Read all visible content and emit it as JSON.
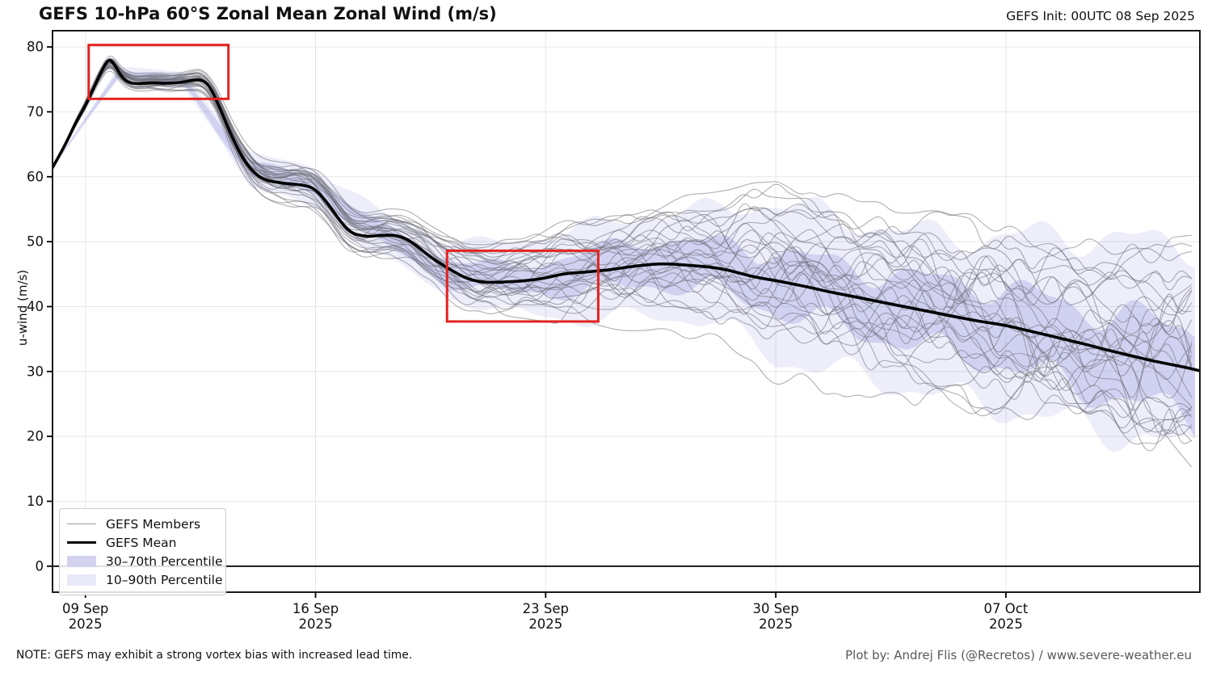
{
  "header": {
    "title": "GEFS 10-hPa 60°S Zonal Mean Zonal Wind (m/s)",
    "init_label": "GEFS Init: 00UTC 08 Sep 2025"
  },
  "footer": {
    "note": "NOTE: GEFS may exhibit a strong vortex bias with increased lead time.",
    "credit": "Plot by: Andrej Flis (@Recretos) / www.severe-weather.eu"
  },
  "legend": {
    "items": [
      {
        "label": "GEFS Members",
        "swatch": "thin-line"
      },
      {
        "label": "GEFS Mean",
        "swatch": "thick-line"
      },
      {
        "label": "30–70th Percentile",
        "swatch": "patch-dark"
      },
      {
        "label": "10–90th Percentile",
        "swatch": "patch-light"
      }
    ]
  },
  "chart_data": {
    "type": "line",
    "title": "GEFS 10-hPa 60°S Zonal Mean Zonal Wind (m/s)",
    "xlabel": "",
    "ylabel": "u-wind (m/s)",
    "x_unit_days_since_init": true,
    "xlim": [
      0,
      34.9
    ],
    "ylim": [
      -4,
      82.5
    ],
    "grid": true,
    "legend_position": "lower left",
    "y_ticks": [
      0,
      10,
      20,
      30,
      40,
      50,
      60,
      70,
      80
    ],
    "x_ticks": [
      {
        "t": 1,
        "line1": "09 Sep",
        "line2": "2025"
      },
      {
        "t": 8,
        "line1": "16 Sep",
        "line2": "2025"
      },
      {
        "t": 15,
        "line1": "23 Sep",
        "line2": "2025"
      },
      {
        "t": 22,
        "line1": "30 Sep",
        "line2": "2025"
      },
      {
        "t": 29,
        "line1": "07 Oct",
        "line2": "2025"
      }
    ],
    "zero_line": 0,
    "members_count": 31,
    "mean": {
      "t": [
        0,
        0.35,
        0.7,
        1.0,
        1.3,
        1.55,
        1.72,
        1.9,
        2.1,
        2.3,
        2.6,
        3.0,
        3.4,
        3.8,
        4.1,
        4.4,
        4.6,
        4.8,
        5.1,
        5.4,
        5.7,
        6.0,
        6.3,
        6.6,
        6.9,
        7.2,
        7.5,
        7.9,
        8.2,
        8.5,
        8.8,
        9.1,
        9.4,
        9.7,
        10.0,
        10.4,
        10.7,
        11.0,
        11.4,
        11.8,
        12.2,
        12.6,
        13.0,
        13.4,
        13.8,
        14.2,
        14.6,
        15.0,
        15.4,
        15.8,
        16.2,
        16.6,
        17.0,
        17.5,
        18.0,
        18.5,
        19.0,
        19.5,
        20.0,
        20.5,
        21.0,
        21.5,
        22.0,
        22.5,
        23.0,
        23.5,
        24.0,
        24.5,
        25.0,
        25.5,
        26.0,
        26.5,
        27.0,
        27.5,
        28.0,
        28.5,
        29.0,
        29.5,
        30.0,
        30.5,
        31.0,
        31.5,
        32.0,
        32.5,
        33.0,
        33.5,
        34.0,
        34.5,
        34.9
      ],
      "v": [
        61.4,
        64.5,
        68.3,
        70.9,
        74.2,
        76.9,
        78.2,
        77.2,
        75.4,
        74.5,
        74.3,
        74.5,
        74.4,
        74.5,
        74.7,
        75.0,
        74.8,
        73.8,
        70.5,
        66.8,
        63.6,
        61.3,
        59.9,
        59.3,
        59.1,
        58.9,
        58.8,
        58.4,
        57.0,
        55.0,
        52.8,
        51.3,
        50.9,
        50.8,
        51.0,
        51.0,
        50.6,
        49.7,
        48.0,
        46.6,
        45.4,
        44.3,
        43.8,
        43.7,
        43.8,
        43.9,
        44.1,
        44.4,
        44.9,
        45.2,
        45.3,
        45.5,
        45.7,
        46.1,
        46.4,
        46.6,
        46.5,
        46.3,
        46.1,
        45.7,
        45.0,
        44.4,
        44.0,
        43.5,
        43.0,
        42.4,
        41.9,
        41.4,
        40.9,
        40.4,
        39.9,
        39.4,
        38.9,
        38.4,
        37.9,
        37.5,
        37.1,
        36.5,
        35.9,
        35.3,
        34.7,
        34.1,
        33.4,
        32.8,
        32.2,
        31.6,
        31.1,
        30.6,
        30.1
      ]
    },
    "percentiles": {
      "t": [
        0,
        2,
        4,
        6,
        8,
        10,
        12,
        14,
        16,
        18,
        20,
        22,
        24,
        26,
        28,
        30,
        32,
        34.9
      ],
      "p10": [
        61.3,
        75.0,
        73.5,
        59.0,
        55.0,
        48.0,
        41.5,
        39.0,
        38.0,
        38.5,
        38.0,
        32.0,
        30.0,
        27.5,
        25.5,
        23.0,
        21.0,
        17.5
      ],
      "p30": [
        61.35,
        75.5,
        74.0,
        60.2,
        57.0,
        49.8,
        43.5,
        42.0,
        42.3,
        43.3,
        42.8,
        39.5,
        36.8,
        34.3,
        32.3,
        29.5,
        26.5,
        22.5
      ],
      "p70": [
        61.45,
        76.5,
        75.3,
        62.3,
        59.8,
        52.5,
        47.3,
        46.0,
        48.0,
        50.3,
        49.8,
        48.5,
        46.3,
        44.5,
        43.5,
        41.5,
        39.0,
        36.5
      ],
      "p90": [
        61.5,
        77.0,
        76.0,
        63.5,
        61.5,
        54.5,
        50.0,
        49.8,
        52.0,
        54.0,
        55.0,
        56.0,
        53.5,
        51.5,
        50.5,
        51.0,
        50.5,
        49.5
      ]
    },
    "annotations": [
      {
        "type": "rect",
        "t0": 1.1,
        "t1": 5.35,
        "v0": 72.0,
        "v1": 80.3
      },
      {
        "type": "rect",
        "t0": 12.0,
        "t1": 16.6,
        "v0": 37.7,
        "v1": 48.6
      }
    ],
    "colors": {
      "mean": "#000000",
      "member": "#6e6e78",
      "band_30_70": "rgba(125,125,215,0.25)",
      "band_10_90": "rgba(125,125,215,0.13)",
      "annotation": "#e42320",
      "grid": "#e7e7e7",
      "frame": "#1a1a1a",
      "legend_patch_dark": "#d3d3f0",
      "legend_patch_light": "#e9e9f9"
    }
  }
}
